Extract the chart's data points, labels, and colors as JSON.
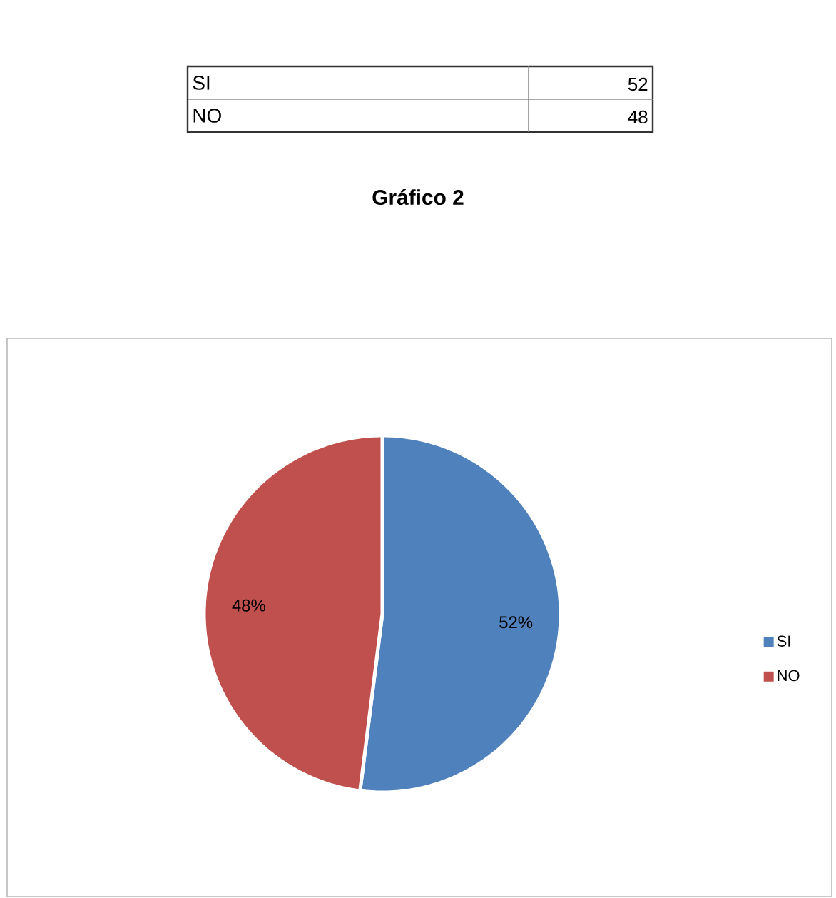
{
  "chart_data": [
    {
      "type": "other",
      "categories": [
        "SI",
        "NO"
      ],
      "values": [
        52,
        48
      ],
      "data_labels": true
    },
    {
      "type": "pie",
      "title": "Gráfico 2",
      "categories": [
        "SI",
        "NO"
      ],
      "values": [
        52,
        48
      ],
      "colors": [
        "#4f81bd",
        "#c0504d"
      ],
      "value_labels": [
        "52%",
        "48%"
      ],
      "legend": "right"
    }
  ]
}
